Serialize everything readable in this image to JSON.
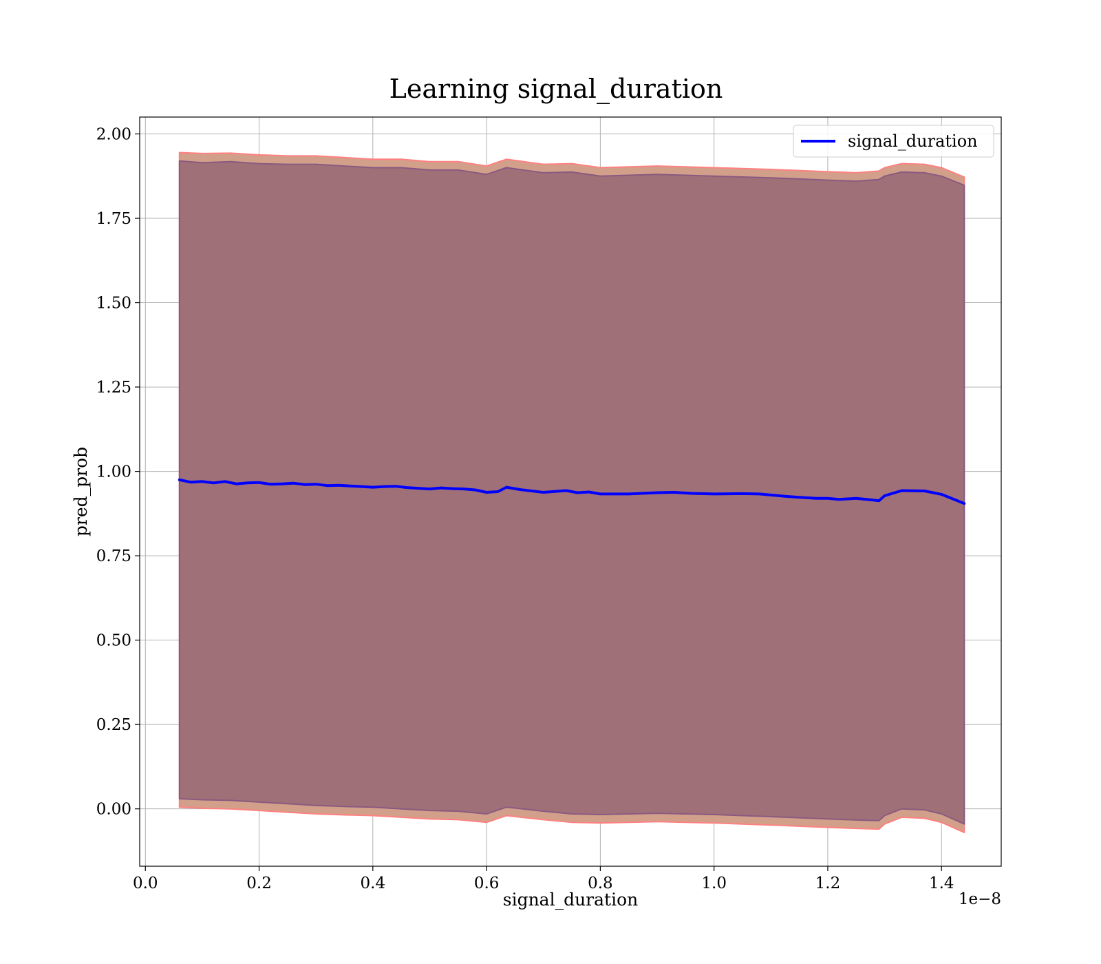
{
  "chart_data": {
    "type": "line",
    "title": "Learning signal_duration",
    "xlabel": "signal_duration",
    "ylabel": "pred_prob",
    "x_offset_label": "1e−8",
    "xlim": [
      -0.01,
      1.505
    ],
    "ylim": [
      -0.17,
      2.05
    ],
    "x_ticks": [
      0.0,
      0.2,
      0.4,
      0.6,
      0.8,
      1.0,
      1.2,
      1.4
    ],
    "x_tick_labels": [
      "0.0",
      "0.2",
      "0.4",
      "0.6",
      "0.8",
      "1.0",
      "1.2",
      "1.4"
    ],
    "y_ticks": [
      0.0,
      0.25,
      0.5,
      0.75,
      1.0,
      1.25,
      1.5,
      1.75,
      2.0
    ],
    "y_tick_labels": [
      "0.00",
      "0.25",
      "0.50",
      "0.75",
      "1.00",
      "1.25",
      "1.50",
      "1.75",
      "2.00"
    ],
    "grid": true,
    "legend_position": "top-right",
    "colors": {
      "line": "#0000ff",
      "outer_band": "#d2a08a",
      "outer_band_edge": "#ff8080",
      "inner_band": "#a07078",
      "inner_band_edge": "#8a5a80",
      "grid": "#b0b0b0"
    },
    "series": [
      {
        "name": "signal_duration",
        "style": "line",
        "x": [
          0.06,
          0.08,
          0.1,
          0.12,
          0.14,
          0.16,
          0.18,
          0.2,
          0.22,
          0.24,
          0.26,
          0.28,
          0.3,
          0.32,
          0.34,
          0.36,
          0.38,
          0.4,
          0.42,
          0.44,
          0.46,
          0.48,
          0.5,
          0.52,
          0.54,
          0.56,
          0.58,
          0.6,
          0.62,
          0.635,
          0.66,
          0.7,
          0.74,
          0.76,
          0.78,
          0.8,
          0.85,
          0.9,
          0.93,
          0.96,
          1.0,
          1.05,
          1.08,
          1.12,
          1.15,
          1.18,
          1.2,
          1.22,
          1.25,
          1.28,
          1.29,
          1.3,
          1.33,
          1.37,
          1.4,
          1.44
        ],
        "y": [
          0.975,
          0.968,
          0.97,
          0.966,
          0.97,
          0.963,
          0.966,
          0.967,
          0.962,
          0.963,
          0.965,
          0.961,
          0.962,
          0.958,
          0.959,
          0.957,
          0.955,
          0.953,
          0.955,
          0.956,
          0.952,
          0.95,
          0.948,
          0.951,
          0.949,
          0.948,
          0.945,
          0.938,
          0.94,
          0.953,
          0.946,
          0.938,
          0.943,
          0.937,
          0.939,
          0.933,
          0.933,
          0.937,
          0.938,
          0.935,
          0.933,
          0.934,
          0.933,
          0.927,
          0.923,
          0.92,
          0.92,
          0.917,
          0.92,
          0.915,
          0.913,
          0.928,
          0.943,
          0.942,
          0.932,
          0.905
        ]
      }
    ],
    "bands": [
      {
        "name": "outer",
        "x": [
          0.06,
          0.1,
          0.15,
          0.2,
          0.25,
          0.3,
          0.35,
          0.4,
          0.45,
          0.5,
          0.55,
          0.6,
          0.635,
          0.7,
          0.75,
          0.8,
          0.9,
          1.0,
          1.1,
          1.2,
          1.25,
          1.29,
          1.3,
          1.33,
          1.37,
          1.4,
          1.44
        ],
        "upper": [
          1.945,
          1.942,
          1.943,
          1.938,
          1.935,
          1.935,
          1.93,
          1.925,
          1.925,
          1.918,
          1.918,
          1.905,
          1.925,
          1.91,
          1.912,
          1.9,
          1.905,
          1.9,
          1.895,
          1.888,
          1.885,
          1.89,
          1.9,
          1.912,
          1.91,
          1.9,
          1.872
        ],
        "lower": [
          0.005,
          0.002,
          0.0,
          -0.005,
          -0.01,
          -0.015,
          -0.018,
          -0.02,
          -0.025,
          -0.03,
          -0.032,
          -0.04,
          -0.02,
          -0.032,
          -0.04,
          -0.042,
          -0.038,
          -0.042,
          -0.048,
          -0.055,
          -0.058,
          -0.06,
          -0.045,
          -0.025,
          -0.028,
          -0.04,
          -0.07
        ]
      },
      {
        "name": "inner",
        "x": [
          0.06,
          0.1,
          0.15,
          0.2,
          0.25,
          0.3,
          0.35,
          0.4,
          0.45,
          0.5,
          0.55,
          0.6,
          0.635,
          0.7,
          0.75,
          0.8,
          0.9,
          1.0,
          1.1,
          1.2,
          1.25,
          1.29,
          1.3,
          1.33,
          1.37,
          1.4,
          1.44
        ],
        "upper": [
          1.92,
          1.915,
          1.918,
          1.912,
          1.91,
          1.91,
          1.905,
          1.9,
          1.9,
          1.893,
          1.893,
          1.88,
          1.9,
          1.885,
          1.887,
          1.875,
          1.88,
          1.875,
          1.87,
          1.863,
          1.86,
          1.865,
          1.875,
          1.887,
          1.885,
          1.875,
          1.848
        ],
        "lower": [
          0.03,
          0.027,
          0.025,
          0.02,
          0.015,
          0.01,
          0.007,
          0.005,
          0.0,
          -0.005,
          -0.007,
          -0.015,
          0.005,
          -0.007,
          -0.015,
          -0.017,
          -0.013,
          -0.017,
          -0.023,
          -0.03,
          -0.033,
          -0.035,
          -0.02,
          0.0,
          -0.003,
          -0.015,
          -0.045
        ]
      }
    ]
  }
}
